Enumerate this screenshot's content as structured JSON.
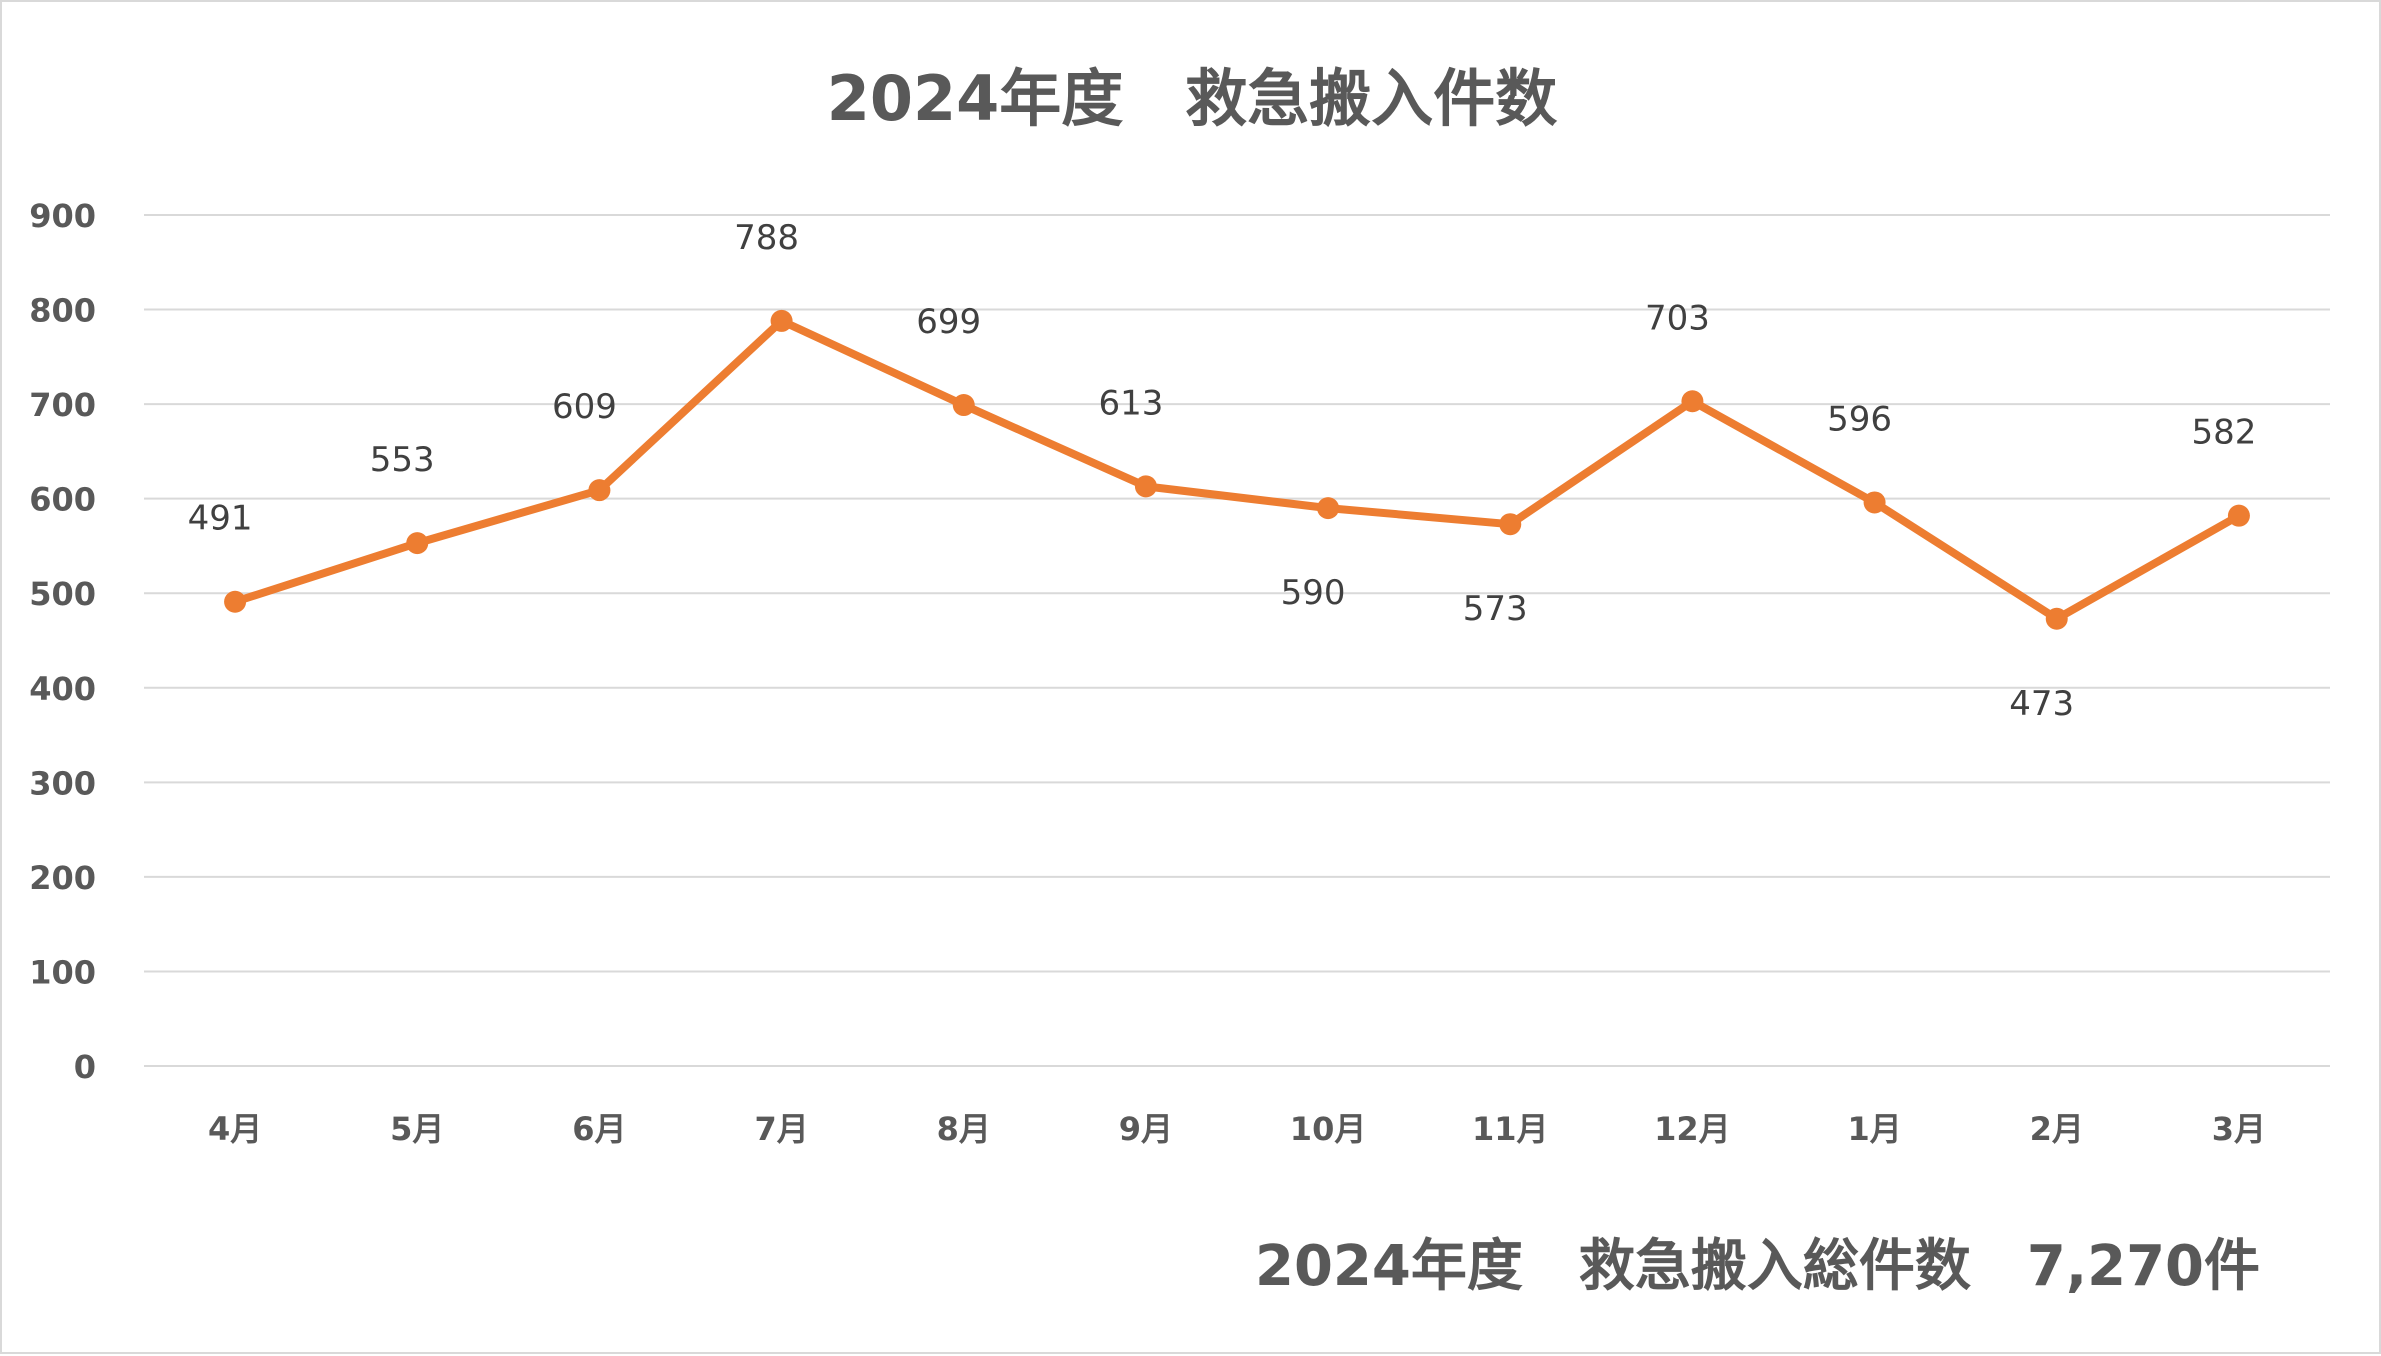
{
  "chart_data": {
    "type": "line",
    "title": "2024年度　救急搬入件数",
    "footer": "2024年度　救急搬入総件数　7,270件",
    "categories": [
      "4月",
      "5月",
      "6月",
      "7月",
      "8月",
      "9月",
      "10月",
      "11月",
      "12月",
      "1月",
      "2月",
      "3月"
    ],
    "series": [
      {
        "values": [
          491,
          553,
          609,
          788,
          699,
          613,
          590,
          573,
          703,
          596,
          473,
          582
        ],
        "color": "#ed7d31"
      }
    ],
    "data_label_position": [
      "above",
      "above",
      "above",
      "above",
      "above",
      "above",
      "below",
      "below",
      "above",
      "above",
      "below",
      "above"
    ],
    "y_ticks": [
      "0",
      "100",
      "200",
      "300",
      "400",
      "500",
      "600",
      "700",
      "800",
      "900"
    ],
    "ylim": [
      0,
      900
    ],
    "xlabel": "",
    "ylabel": "",
    "grid": true,
    "legend": "none",
    "colors": {
      "gridline": "#d9d9d9",
      "text": "#595959",
      "label": "#404040"
    }
  }
}
